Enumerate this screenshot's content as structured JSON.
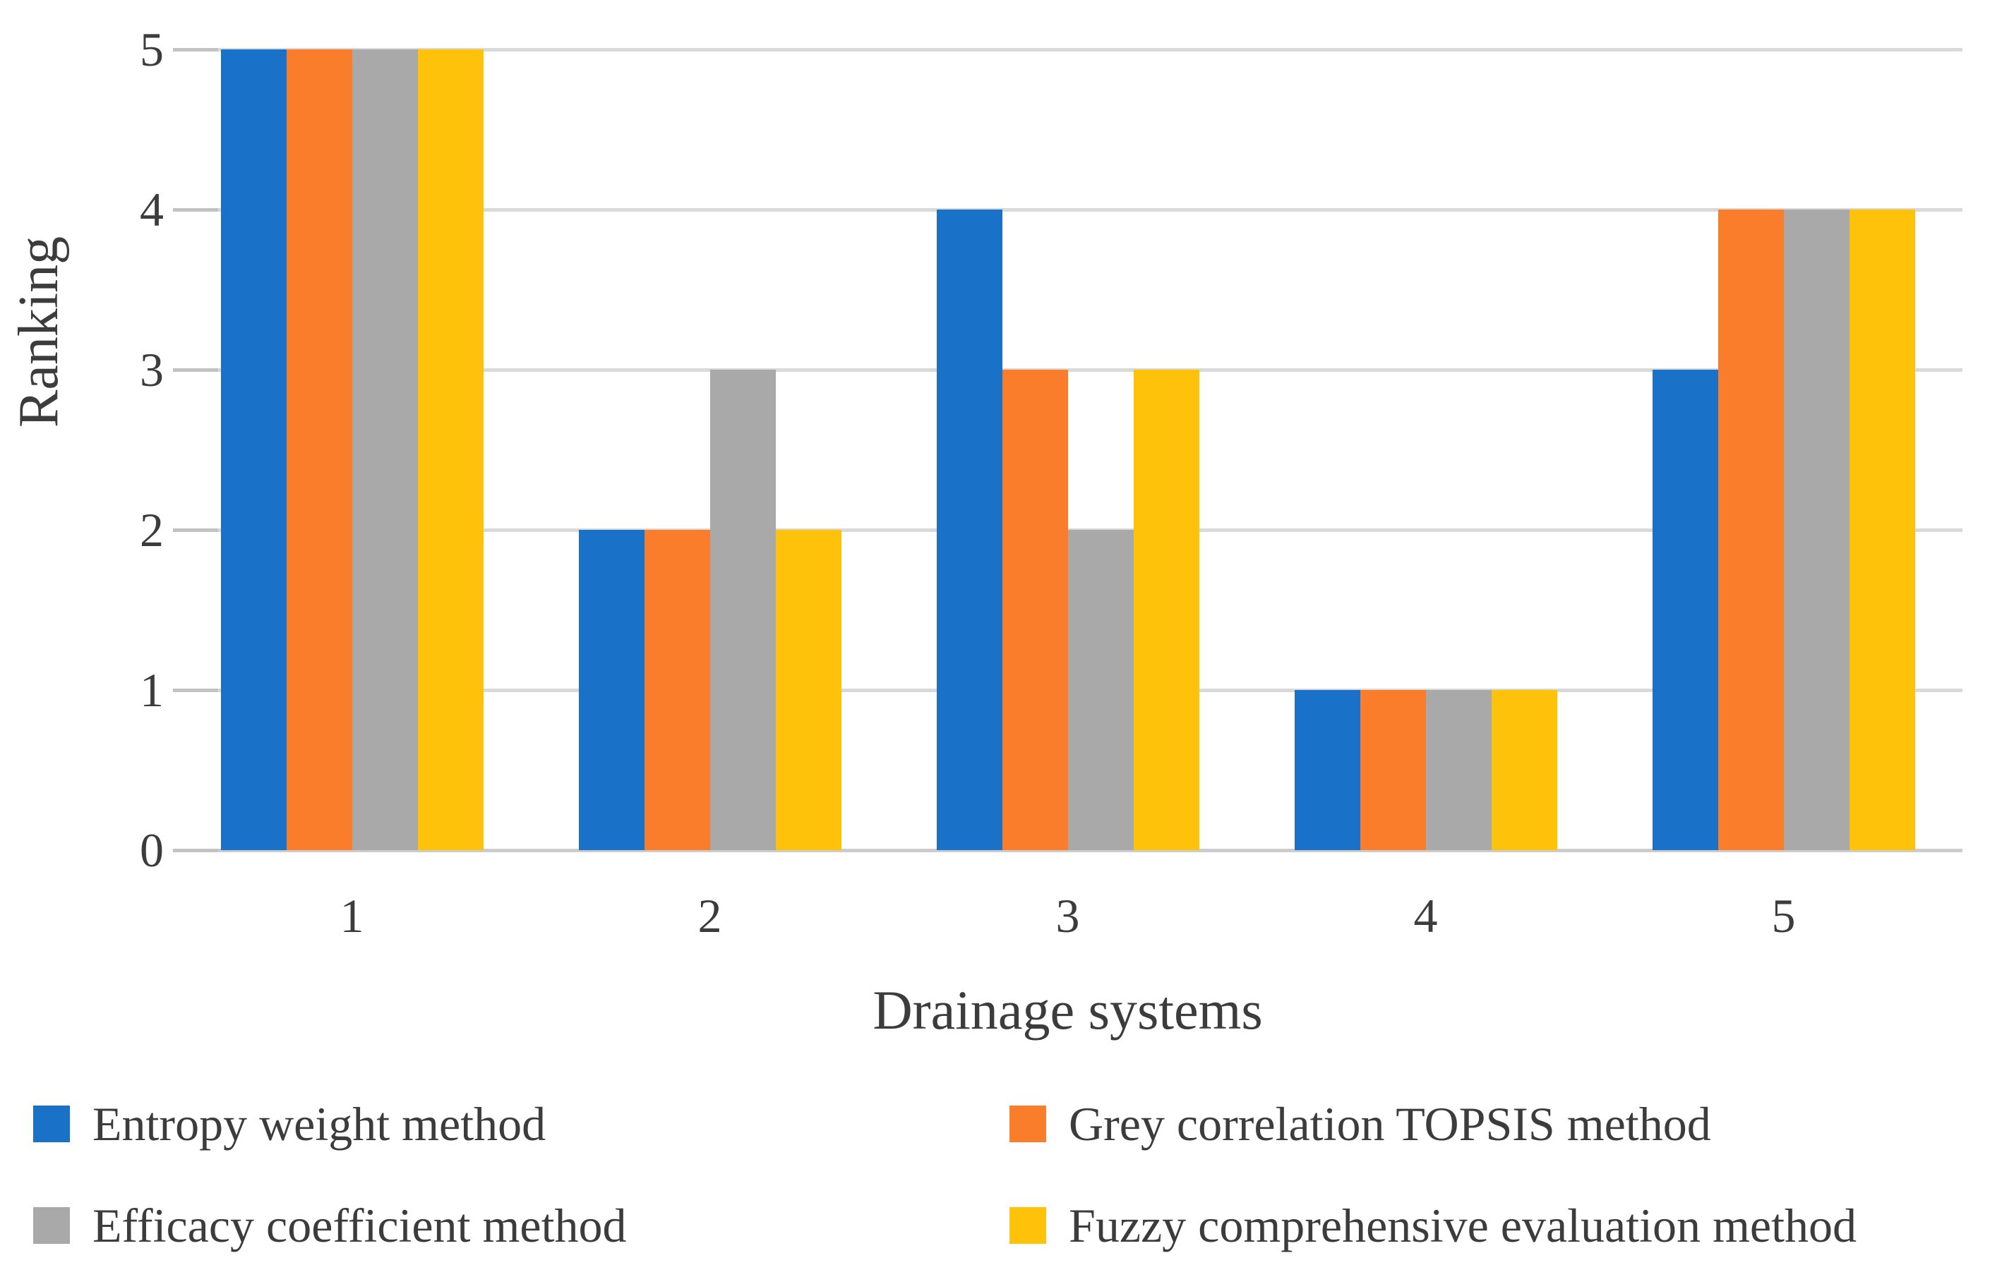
{
  "chart_data": {
    "type": "bar",
    "title": "",
    "xlabel": "Drainage systems",
    "ylabel": "Ranking",
    "categories": [
      "1",
      "2",
      "3",
      "4",
      "5"
    ],
    "series": [
      {
        "name": "Entropy weight method",
        "color": "#1a72c8",
        "values": [
          5,
          2,
          4,
          1,
          3
        ]
      },
      {
        "name": "Grey correlation TOPSIS method",
        "color": "#f97d2b",
        "values": [
          5,
          2,
          3,
          1,
          4
        ]
      },
      {
        "name": "Efficacy coefficient method",
        "color": "#a9a9a9",
        "values": [
          5,
          3,
          2,
          1,
          4
        ]
      },
      {
        "name": "Fuzzy comprehensive evaluation method",
        "color": "#fec20b",
        "values": [
          5,
          2,
          3,
          1,
          4
        ]
      }
    ],
    "ylim": [
      0,
      5
    ],
    "yticks": [
      0,
      1,
      2,
      3,
      4,
      5
    ],
    "grid": true,
    "gridline_color": "#d9d9d9",
    "text_color": "#3c3c3c",
    "legend_position": "bottom-two-columns",
    "legend_order": [
      "Entropy weight method",
      "Grey correlation TOPSIS method",
      "Efficacy coefficient method",
      "Fuzzy comprehensive evaluation method"
    ]
  }
}
